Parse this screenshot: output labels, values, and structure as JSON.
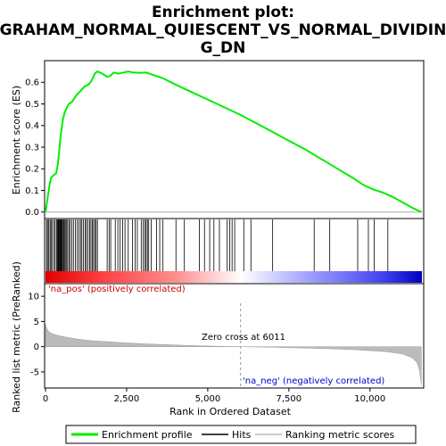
{
  "chart_data": {
    "type": "line",
    "title_lines": [
      "Enrichment plot:",
      "GRAHAM_NORMAL_QUIESCENT_VS_NORMAL_DIVIDIN",
      "G_DN"
    ],
    "x_label": "Rank in Ordered Dataset",
    "x_ticks": [
      0,
      2500,
      5000,
      7500,
      10000
    ],
    "x_tick_labels": [
      "0",
      "2,500",
      "5,000",
      "7,500",
      "10,000"
    ],
    "x_range": [
      0,
      11600
    ],
    "es_panel": {
      "ylabel": "Enrichment score (ES)",
      "ylim": [
        -0.03,
        0.7
      ],
      "y_ticks": [
        0.0,
        0.1,
        0.2,
        0.3,
        0.4,
        0.5,
        0.6
      ],
      "y_tick_labels": [
        "0.0",
        "0.1",
        "0.2",
        "0.3",
        "0.4",
        "0.5",
        "0.6"
      ],
      "series_name": "Enrichment profile",
      "color": "#00ee00",
      "points": [
        [
          0,
          0.0
        ],
        [
          40,
          0.04
        ],
        [
          90,
          0.09
        ],
        [
          130,
          0.13
        ],
        [
          180,
          0.16
        ],
        [
          250,
          0.17
        ],
        [
          330,
          0.18
        ],
        [
          380,
          0.22
        ],
        [
          420,
          0.28
        ],
        [
          460,
          0.34
        ],
        [
          500,
          0.39
        ],
        [
          540,
          0.43
        ],
        [
          590,
          0.46
        ],
        [
          650,
          0.48
        ],
        [
          720,
          0.5
        ],
        [
          820,
          0.51
        ],
        [
          950,
          0.54
        ],
        [
          1080,
          0.56
        ],
        [
          1200,
          0.58
        ],
        [
          1330,
          0.59
        ],
        [
          1430,
          0.61
        ],
        [
          1520,
          0.64
        ],
        [
          1600,
          0.65
        ],
        [
          1750,
          0.64
        ],
        [
          1900,
          0.625
        ],
        [
          2000,
          0.63
        ],
        [
          2100,
          0.645
        ],
        [
          2250,
          0.64
        ],
        [
          2400,
          0.645
        ],
        [
          2550,
          0.65
        ],
        [
          2700,
          0.645
        ],
        [
          2900,
          0.643
        ],
        [
          3100,
          0.645
        ],
        [
          3300,
          0.635
        ],
        [
          3600,
          0.62
        ],
        [
          4000,
          0.59
        ],
        [
          4500,
          0.555
        ],
        [
          5000,
          0.52
        ],
        [
          5500,
          0.485
        ],
        [
          6000,
          0.45
        ],
        [
          6500,
          0.41
        ],
        [
          7000,
          0.37
        ],
        [
          7500,
          0.33
        ],
        [
          8000,
          0.29
        ],
        [
          8500,
          0.245
        ],
        [
          9000,
          0.2
        ],
        [
          9500,
          0.155
        ],
        [
          9800,
          0.125
        ],
        [
          10100,
          0.105
        ],
        [
          10400,
          0.09
        ],
        [
          10700,
          0.07
        ],
        [
          11000,
          0.045
        ],
        [
          11300,
          0.02
        ],
        [
          11580,
          0.0
        ]
      ]
    },
    "hits_panel": {
      "hit_ranks": [
        30,
        60,
        100,
        140,
        170,
        210,
        260,
        300,
        340,
        370,
        390,
        410,
        430,
        450,
        470,
        490,
        510,
        530,
        560,
        580,
        610,
        640,
        680,
        720,
        760,
        810,
        860,
        920,
        980,
        1030,
        1080,
        1120,
        1170,
        1220,
        1260,
        1310,
        1360,
        1400,
        1440,
        1480,
        1520,
        1560,
        1600,
        1900,
        1960,
        2010,
        2150,
        2230,
        2300,
        2380,
        2450,
        2550,
        2680,
        2760,
        2830,
        2950,
        3010,
        3060,
        3100,
        3140,
        3180,
        3260,
        3420,
        3520,
        3620,
        4020,
        4280,
        4740,
        4900,
        5060,
        5190,
        5360,
        5600,
        5680,
        5750,
        5830,
        6110,
        6330,
        7000,
        8280,
        8760,
        9620,
        9950,
        10130,
        10550
      ],
      "gradient_stops": [
        "#ff0000",
        "#ff8080",
        "#ffffff",
        "#8080ff",
        "#0000ff"
      ]
    },
    "metric_panel": {
      "ylabel": "Ranked list metric (PreRanked)",
      "ylim": [
        -8.2,
        12.5
      ],
      "y_ticks": [
        -5,
        0,
        5,
        10
      ],
      "y_tick_labels": [
        "-5",
        "0",
        "5",
        "10"
      ],
      "curve": [
        [
          0,
          4.5
        ],
        [
          40,
          3.6
        ],
        [
          100,
          3.0
        ],
        [
          200,
          2.6
        ],
        [
          400,
          2.2
        ],
        [
          700,
          1.8
        ],
        [
          1000,
          1.5
        ],
        [
          1500,
          1.15
        ],
        [
          2000,
          0.95
        ],
        [
          2500,
          0.75
        ],
        [
          3000,
          0.58
        ],
        [
          3500,
          0.45
        ],
        [
          4000,
          0.33
        ],
        [
          4500,
          0.22
        ],
        [
          5000,
          0.13
        ],
        [
          5500,
          0.05
        ],
        [
          6011,
          0.0
        ],
        [
          6500,
          -0.06
        ],
        [
          7000,
          -0.12
        ],
        [
          7500,
          -0.2
        ],
        [
          8000,
          -0.28
        ],
        [
          8500,
          -0.37
        ],
        [
          9000,
          -0.47
        ],
        [
          9500,
          -0.6
        ],
        [
          10000,
          -0.78
        ],
        [
          10500,
          -1.0
        ],
        [
          11000,
          -1.45
        ],
        [
          11300,
          -2.2
        ],
        [
          11450,
          -3.2
        ],
        [
          11530,
          -4.8
        ],
        [
          11580,
          -7.6
        ]
      ],
      "pos_label": "'na_pos' (positively correlated)",
      "neg_label": "'na_neg' (negatively correlated)",
      "zero_cross_label": "Zero cross at 6011",
      "zero_cross_rank": 6011
    },
    "legend": [
      {
        "label": "Enrichment profile",
        "color": "#00ee00"
      },
      {
        "label": "Hits",
        "color": "#000000"
      },
      {
        "label": "Ranking metric scores",
        "color": "#bbbbbb"
      }
    ]
  }
}
